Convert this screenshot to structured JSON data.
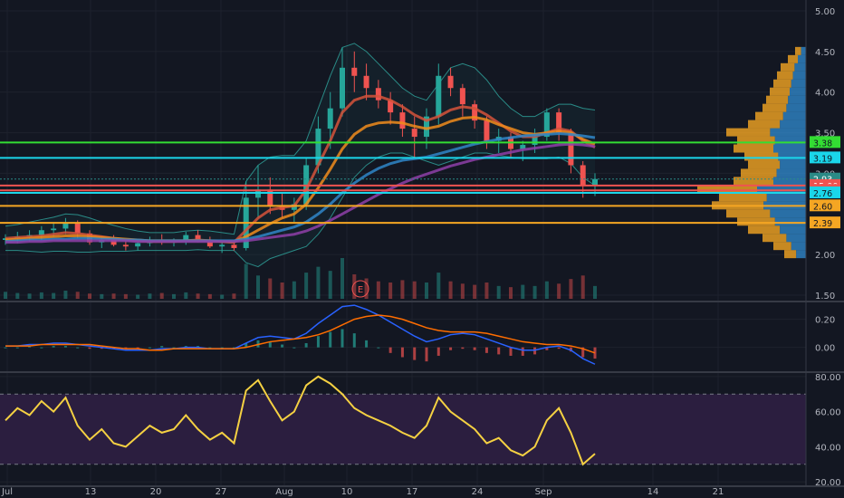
{
  "colors": {
    "background": "#131722",
    "grid": "#1e222d",
    "axis_text": "#b2b5be",
    "separator": "#363a45",
    "candle_up": "#26a69a",
    "candle_down": "#ef5350",
    "volume_up": "#26a69a",
    "volume_down": "#ef5350",
    "bb_band": "#2a8a86",
    "ma_red": "#d5533b",
    "ma_orange": "#f08c1c",
    "ma_blue": "#2f86c8",
    "ma_purple": "#8e3fa8",
    "macd_line": "#2962ff",
    "signal_line": "#ff6d00",
    "rsi_line": "#f5d142",
    "rsi_fill": "#2b1e3f",
    "level_green": "#33dd33",
    "level_cyan": "#1ad6ea",
    "level_red": "#ef5350",
    "level_orange": "#f5a623",
    "vp_orange": "#f5a623",
    "vp_blue": "#2f86c8"
  },
  "earnings_marker": "E",
  "chart_data": [
    {
      "type": "candlestick",
      "pane": "price",
      "y_ticks": [
        "5.00",
        "4.50",
        "4.00",
        "3.50",
        "3.00",
        "2.00",
        "1.50"
      ],
      "ylim": [
        1.5,
        5.0
      ],
      "x_ticks": [
        "Jul",
        "13",
        "20",
        "27",
        "Aug",
        "10",
        "17",
        "24",
        "Sep",
        "14",
        "21"
      ],
      "price_lines": [
        {
          "value": 3.38,
          "label": "3.38",
          "color": "#33dd33"
        },
        {
          "value": 3.19,
          "label": "3.19",
          "color": "#1ad6ea"
        },
        {
          "value": 2.93,
          "label": "2.93",
          "color": "#2a8a86",
          "dotted": true
        },
        {
          "value": 2.85,
          "label": "15:00",
          "color": "#ef5350"
        },
        {
          "value": 2.79,
          "label": "2.79",
          "color": "#ef5350"
        },
        {
          "value": 2.76,
          "label": "2.76",
          "color": "#1ad6ea"
        },
        {
          "value": 2.6,
          "label": "2.60",
          "color": "#f5a623"
        },
        {
          "value": 2.39,
          "label": "2.39",
          "color": "#f5a623"
        }
      ],
      "ohlc": [
        [
          2.18,
          2.25,
          2.12,
          2.2
        ],
        [
          2.2,
          2.28,
          2.14,
          2.22
        ],
        [
          2.22,
          2.3,
          2.16,
          2.24
        ],
        [
          2.24,
          2.35,
          2.18,
          2.3
        ],
        [
          2.3,
          2.4,
          2.22,
          2.32
        ],
        [
          2.32,
          2.45,
          2.25,
          2.38
        ],
        [
          2.38,
          2.42,
          2.2,
          2.26
        ],
        [
          2.26,
          2.3,
          2.12,
          2.15
        ],
        [
          2.15,
          2.22,
          2.08,
          2.18
        ],
        [
          2.18,
          2.24,
          2.1,
          2.12
        ],
        [
          2.12,
          2.18,
          2.05,
          2.1
        ],
        [
          2.1,
          2.16,
          2.05,
          2.14
        ],
        [
          2.14,
          2.22,
          2.1,
          2.18
        ],
        [
          2.18,
          2.25,
          2.12,
          2.15
        ],
        [
          2.15,
          2.2,
          2.1,
          2.16
        ],
        [
          2.16,
          2.28,
          2.12,
          2.24
        ],
        [
          2.24,
          2.3,
          2.15,
          2.18
        ],
        [
          2.18,
          2.22,
          2.08,
          2.1
        ],
        [
          2.1,
          2.16,
          2.02,
          2.12
        ],
        [
          2.12,
          2.18,
          2.05,
          2.08
        ],
        [
          2.08,
          2.9,
          2.05,
          2.7
        ],
        [
          2.7,
          3.1,
          2.45,
          2.8
        ],
        [
          2.8,
          2.95,
          2.5,
          2.6
        ],
        [
          2.6,
          2.75,
          2.45,
          2.55
        ],
        [
          2.55,
          2.7,
          2.4,
          2.62
        ],
        [
          2.62,
          3.2,
          2.55,
          3.1
        ],
        [
          3.1,
          3.7,
          3.0,
          3.55
        ],
        [
          3.55,
          4.0,
          3.3,
          3.8
        ],
        [
          3.8,
          4.55,
          3.7,
          4.3
        ],
        [
          4.3,
          4.5,
          4.0,
          4.2
        ],
        [
          4.2,
          4.35,
          3.9,
          4.05
        ],
        [
          4.05,
          4.15,
          3.8,
          3.9
        ],
        [
          3.9,
          4.0,
          3.6,
          3.75
        ],
        [
          3.75,
          3.85,
          3.45,
          3.55
        ],
        [
          3.55,
          3.7,
          3.2,
          3.45
        ],
        [
          3.45,
          3.8,
          3.3,
          3.7
        ],
        [
          3.7,
          4.35,
          3.6,
          4.2
        ],
        [
          4.2,
          4.3,
          3.95,
          4.05
        ],
        [
          4.05,
          4.1,
          3.7,
          3.85
        ],
        [
          3.85,
          3.9,
          3.55,
          3.65
        ],
        [
          3.65,
          3.7,
          3.3,
          3.4
        ],
        [
          3.4,
          3.55,
          3.25,
          3.45
        ],
        [
          3.45,
          3.5,
          3.2,
          3.3
        ],
        [
          3.3,
          3.4,
          3.15,
          3.35
        ],
        [
          3.35,
          3.55,
          3.25,
          3.45
        ],
        [
          3.45,
          3.8,
          3.4,
          3.75
        ],
        [
          3.75,
          3.8,
          3.4,
          3.5
        ],
        [
          3.5,
          3.55,
          3.0,
          3.1
        ],
        [
          3.1,
          3.15,
          2.7,
          2.85
        ],
        [
          2.85,
          3.0,
          2.72,
          2.93
        ]
      ],
      "volume": [
        12,
        10,
        9,
        11,
        10,
        14,
        12,
        9,
        8,
        9,
        8,
        7,
        9,
        10,
        8,
        11,
        9,
        8,
        7,
        9,
        60,
        40,
        35,
        28,
        30,
        45,
        55,
        48,
        70,
        42,
        35,
        30,
        28,
        32,
        30,
        28,
        45,
        30,
        26,
        24,
        28,
        22,
        20,
        24,
        22,
        30,
        26,
        34,
        40,
        22
      ],
      "series": [
        {
          "name": "",
          "values": [
            2.2,
            2.21,
            2.22,
            2.23,
            2.25,
            2.27,
            2.26,
            2.24,
            2.22,
            2.2,
            2.18,
            2.17,
            2.16,
            2.16,
            2.16,
            2.17,
            2.18,
            2.17,
            2.16,
            2.15,
            2.3,
            2.45,
            2.55,
            2.58,
            2.6,
            2.8,
            3.1,
            3.4,
            3.75,
            3.9,
            3.95,
            3.95,
            3.9,
            3.82,
            3.72,
            3.65,
            3.7,
            3.78,
            3.82,
            3.8,
            3.72,
            3.62,
            3.52,
            3.45,
            3.45,
            3.5,
            3.55,
            3.52,
            3.4,
            3.32
          ]
        },
        {
          "name": "",
          "values": [
            2.18,
            2.19,
            2.2,
            2.21,
            2.22,
            2.23,
            2.23,
            2.22,
            2.21,
            2.2,
            2.19,
            2.18,
            2.17,
            2.17,
            2.17,
            2.17,
            2.17,
            2.17,
            2.16,
            2.16,
            2.22,
            2.3,
            2.38,
            2.45,
            2.5,
            2.62,
            2.82,
            3.05,
            3.3,
            3.48,
            3.58,
            3.62,
            3.63,
            3.62,
            3.58,
            3.55,
            3.58,
            3.64,
            3.68,
            3.69,
            3.66,
            3.6,
            3.55,
            3.5,
            3.48,
            3.5,
            3.52,
            3.5,
            3.42,
            3.36
          ]
        },
        {
          "name": "",
          "values": [
            2.16,
            2.17,
            2.18,
            2.18,
            2.19,
            2.19,
            2.2,
            2.2,
            2.19,
            2.19,
            2.18,
            2.18,
            2.17,
            2.17,
            2.17,
            2.17,
            2.17,
            2.17,
            2.17,
            2.17,
            2.19,
            2.22,
            2.26,
            2.3,
            2.34,
            2.4,
            2.5,
            2.62,
            2.76,
            2.88,
            2.98,
            3.06,
            3.12,
            3.16,
            3.18,
            3.2,
            3.24,
            3.28,
            3.32,
            3.36,
            3.39,
            3.42,
            3.44,
            3.46,
            3.47,
            3.48,
            3.49,
            3.48,
            3.46,
            3.44
          ]
        },
        {
          "name": "",
          "values": [
            2.15,
            2.15,
            2.16,
            2.16,
            2.17,
            2.17,
            2.17,
            2.17,
            2.17,
            2.17,
            2.17,
            2.16,
            2.16,
            2.16,
            2.16,
            2.16,
            2.16,
            2.16,
            2.16,
            2.16,
            2.17,
            2.19,
            2.21,
            2.23,
            2.25,
            2.29,
            2.35,
            2.42,
            2.5,
            2.58,
            2.66,
            2.74,
            2.81,
            2.88,
            2.94,
            2.99,
            3.04,
            3.09,
            3.13,
            3.17,
            3.2,
            3.23,
            3.26,
            3.29,
            3.31,
            3.33,
            3.35,
            3.36,
            3.35,
            3.33
          ]
        }
      ],
      "bollinger": {
        "upper": [
          2.35,
          2.37,
          2.4,
          2.43,
          2.46,
          2.5,
          2.49,
          2.45,
          2.4,
          2.36,
          2.32,
          2.29,
          2.27,
          2.27,
          2.27,
          2.29,
          2.3,
          2.29,
          2.27,
          2.25,
          2.9,
          3.1,
          3.2,
          3.22,
          3.22,
          3.4,
          3.8,
          4.2,
          4.55,
          4.6,
          4.5,
          4.35,
          4.2,
          4.05,
          3.95,
          3.9,
          4.1,
          4.3,
          4.35,
          4.3,
          4.15,
          3.95,
          3.8,
          3.7,
          3.7,
          3.78,
          3.85,
          3.85,
          3.8,
          3.78
        ],
        "lower": [
          2.05,
          2.05,
          2.04,
          2.03,
          2.04,
          2.04,
          2.03,
          2.03,
          2.04,
          2.04,
          2.04,
          2.05,
          2.05,
          2.05,
          2.05,
          2.05,
          2.06,
          2.05,
          2.05,
          2.05,
          1.9,
          1.85,
          1.95,
          2.0,
          2.05,
          2.1,
          2.25,
          2.45,
          2.7,
          2.95,
          3.1,
          3.2,
          3.25,
          3.25,
          3.2,
          3.15,
          3.1,
          3.15,
          3.2,
          3.25,
          3.25,
          3.22,
          3.2,
          3.18,
          3.18,
          3.18,
          3.2,
          3.12,
          2.95,
          2.85
        ]
      },
      "volume_profile": [
        [
          2.0,
          30
        ],
        [
          2.1,
          45
        ],
        [
          2.2,
          60
        ],
        [
          2.3,
          80
        ],
        [
          2.4,
          95
        ],
        [
          2.5,
          110
        ],
        [
          2.6,
          130
        ],
        [
          2.7,
          120
        ],
        [
          2.8,
          150
        ],
        [
          2.9,
          100
        ],
        [
          3.0,
          90
        ],
        [
          3.1,
          80
        ],
        [
          3.2,
          85
        ],
        [
          3.3,
          100
        ],
        [
          3.4,
          95
        ],
        [
          3.5,
          110
        ],
        [
          3.6,
          80
        ],
        [
          3.7,
          70
        ],
        [
          3.8,
          60
        ],
        [
          3.9,
          55
        ],
        [
          4.0,
          50
        ],
        [
          4.1,
          45
        ],
        [
          4.2,
          40
        ],
        [
          4.3,
          35
        ],
        [
          4.4,
          25
        ],
        [
          4.5,
          15
        ]
      ]
    },
    {
      "type": "macd",
      "pane": "macd",
      "y_ticks": [
        "0.20",
        "0.00"
      ],
      "ylim": [
        -0.17,
        0.32
      ],
      "series": [
        {
          "name": "",
          "values": [
            0.01,
            0.01,
            0.02,
            0.02,
            0.03,
            0.03,
            0.02,
            0.01,
            0.0,
            -0.01,
            -0.02,
            -0.02,
            -0.02,
            -0.01,
            -0.01,
            0.0,
            0.0,
            -0.01,
            -0.01,
            -0.01,
            0.03,
            0.07,
            0.08,
            0.07,
            0.06,
            0.1,
            0.17,
            0.23,
            0.29,
            0.3,
            0.27,
            0.23,
            0.18,
            0.13,
            0.08,
            0.04,
            0.06,
            0.09,
            0.1,
            0.09,
            0.06,
            0.03,
            0.0,
            -0.02,
            -0.02,
            0.0,
            0.01,
            -0.02,
            -0.08,
            -0.12
          ]
        },
        {
          "name": "",
          "values": [
            0.01,
            0.01,
            0.01,
            0.02,
            0.02,
            0.02,
            0.02,
            0.02,
            0.01,
            0.0,
            -0.01,
            -0.01,
            -0.02,
            -0.02,
            -0.01,
            -0.01,
            -0.01,
            -0.01,
            -0.01,
            -0.01,
            0.0,
            0.02,
            0.04,
            0.05,
            0.06,
            0.07,
            0.09,
            0.12,
            0.16,
            0.2,
            0.22,
            0.23,
            0.22,
            0.2,
            0.17,
            0.14,
            0.12,
            0.11,
            0.11,
            0.11,
            0.1,
            0.08,
            0.06,
            0.04,
            0.03,
            0.02,
            0.02,
            0.01,
            -0.01,
            -0.04
          ]
        }
      ]
    },
    {
      "type": "line",
      "pane": "rsi",
      "y_ticks": [
        "80.00",
        "60.00",
        "40.00",
        "20.00"
      ],
      "ylim": [
        18,
        82
      ],
      "band": [
        30,
        70
      ],
      "series": [
        {
          "name": "",
          "values": [
            55,
            62,
            58,
            66,
            60,
            68,
            52,
            44,
            50,
            42,
            40,
            46,
            52,
            48,
            50,
            58,
            50,
            44,
            48,
            42,
            72,
            78,
            66,
            55,
            60,
            75,
            80,
            76,
            70,
            62,
            58,
            55,
            52,
            48,
            45,
            52,
            68,
            60,
            55,
            50,
            42,
            45,
            38,
            35,
            40,
            55,
            62,
            48,
            30,
            36
          ]
        }
      ]
    }
  ]
}
